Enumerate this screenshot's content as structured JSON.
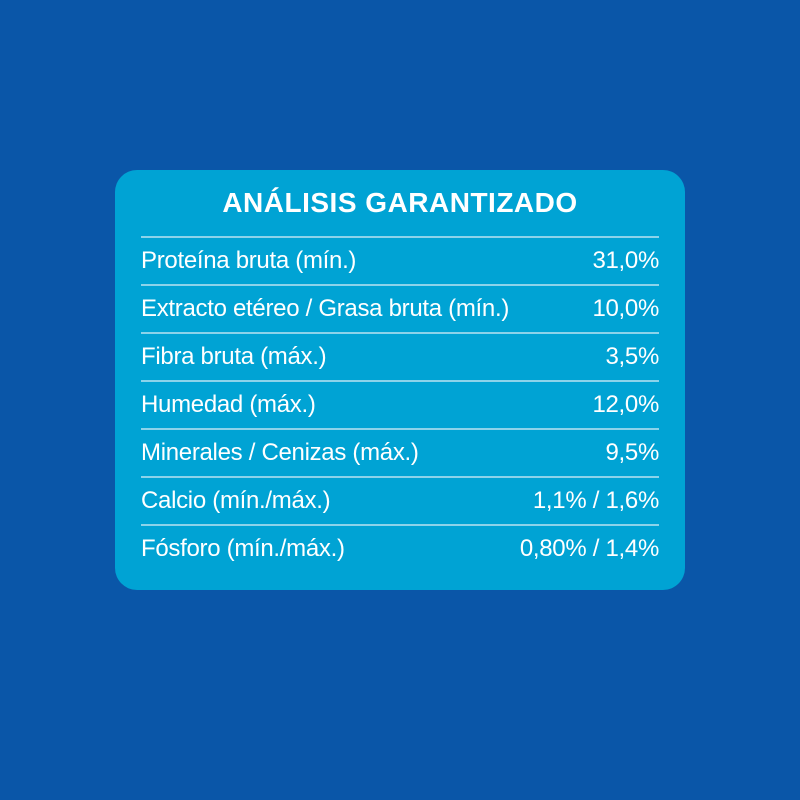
{
  "colors": {
    "background": "#0a56a8",
    "card": "#00a3d4",
    "text": "#ffffff",
    "divider": "#8cd3ea"
  },
  "card": {
    "title": "ANÁLISIS GARANTIZADO",
    "rows": [
      {
        "label": "Proteína bruta (mín.)",
        "value": "31,0%"
      },
      {
        "label": "Extracto etéreo / Grasa bruta (mín.)",
        "value": "10,0%"
      },
      {
        "label": "Fibra bruta (máx.)",
        "value": "3,5%"
      },
      {
        "label": "Humedad (máx.)",
        "value": "12,0%"
      },
      {
        "label": "Minerales / Cenizas (máx.)",
        "value": "9,5%"
      },
      {
        "label": "Calcio (mín./máx.)",
        "value": "1,1% / 1,6%"
      },
      {
        "label": "Fósforo (mín./máx.)",
        "value": "0,80% / 1,4%"
      }
    ]
  }
}
